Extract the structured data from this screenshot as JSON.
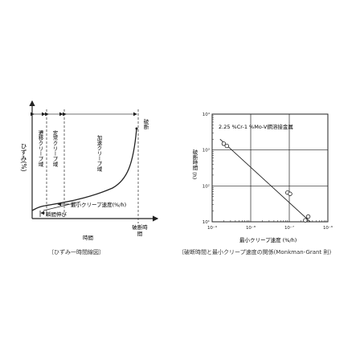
{
  "left_diagram": {
    "ylabel": "ひずみ(%)",
    "xlabel": "時間",
    "regions": [
      "遷移クリープ域",
      "定常クリープ域",
      "加速クリープ域"
    ],
    "rupture_label": "破断",
    "rupture_time_label": "破断時間",
    "min_creep_rate_label": "最小クリープ速度(%/h)",
    "instant_elongation_label": "瞬間伸び",
    "caption": "〔ひずみ一時間線図〕"
  },
  "chart_data": {
    "type": "scatter",
    "title": "2.25 %Cr-1 %Mo-V鋼溶接金属",
    "xlabel": "最小クリープ速度 (%/h)",
    "ylabel": "破断時間 (h)",
    "x_scale": "log",
    "y_scale": "log",
    "xlim": [
      1e-09,
      1e-06
    ],
    "ylim": [
      10,
      10000
    ],
    "x_ticks": [
      "10⁻⁹",
      "10⁻⁸",
      "10⁻⁷",
      "10⁻⁶"
    ],
    "y_ticks": [
      "10¹",
      "10²",
      "10³",
      "10⁴"
    ],
    "grid": true,
    "series": [
      {
        "x": [
          2e-09,
          2.4e-09,
          9e-08,
          1.05e-07,
          2.6e-07,
          3.1e-07
        ],
        "y": [
          1500,
          1300,
          65,
          60,
          11,
          14
        ]
      }
    ],
    "fit_line": {
      "x": [
        1.6e-09,
        3.5e-07
      ],
      "y": [
        2000,
        10
      ]
    },
    "caption": "〔破断時間と最小クリープ速度の関係(Monkman-Grant 則)"
  }
}
